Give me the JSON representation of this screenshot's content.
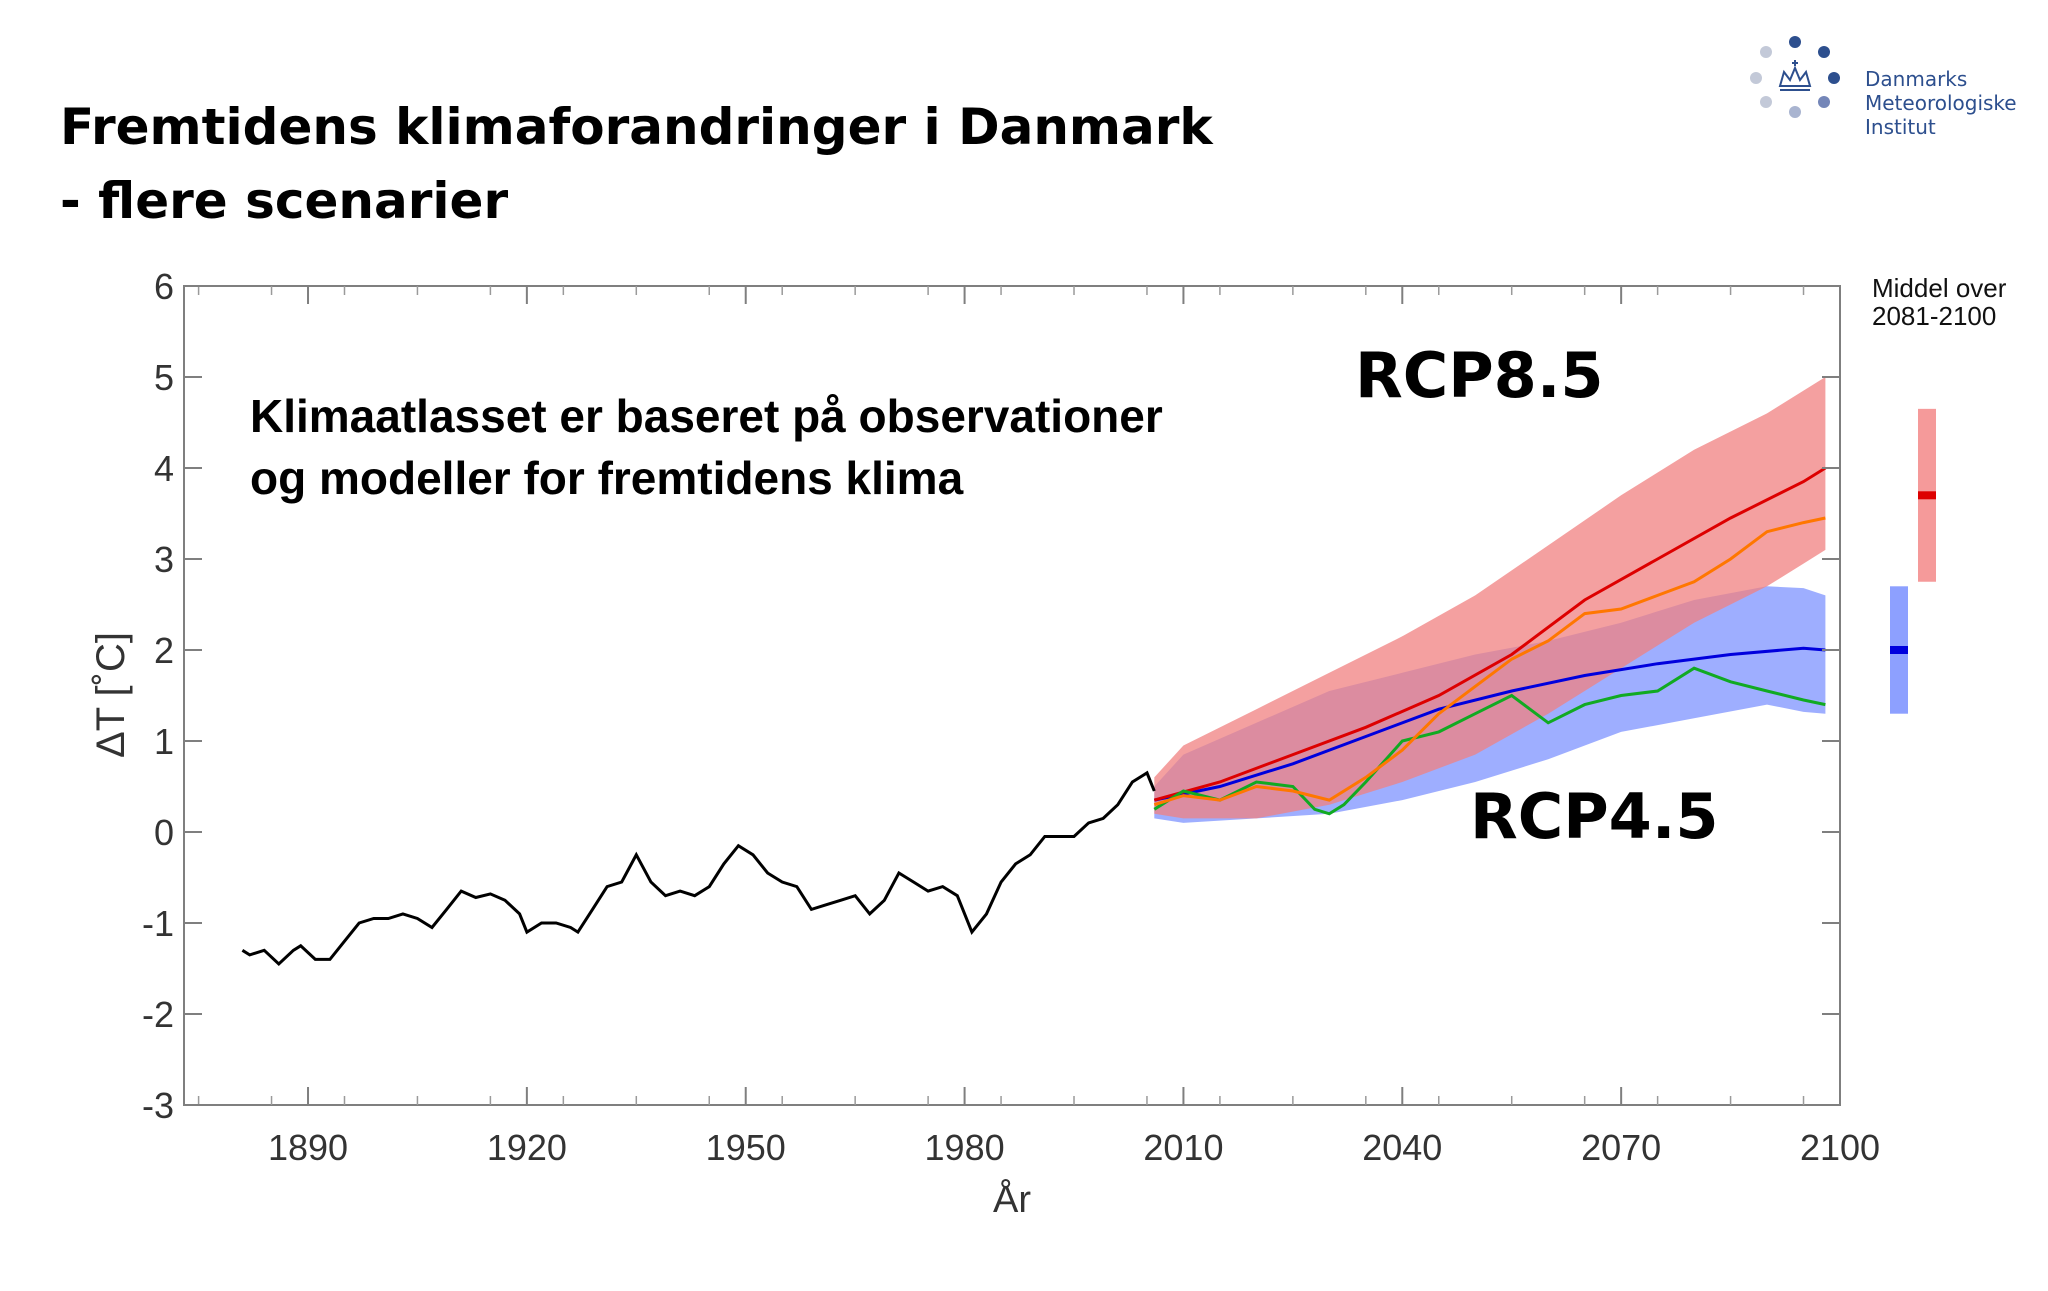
{
  "slide": {
    "title_line1": "Fremtidens klimaforandringer i Danmark",
    "title_line2": "- flere scenarier"
  },
  "logo": {
    "line1": "Danmarks",
    "line2": "Meteorologiske",
    "line3": "Institut",
    "color": "#2d4f8e"
  },
  "chart_data": {
    "type": "line",
    "xlabel": "År",
    "ylabel": "ΔT [˚C]",
    "xlim": [
      1873,
      2100
    ],
    "ylim": [
      -3,
      6
    ],
    "x_ticks": [
      1890,
      1920,
      1950,
      1980,
      2010,
      2040,
      2070,
      2100
    ],
    "y_ticks": [
      -3,
      -2,
      -1,
      0,
      1,
      2,
      3,
      4,
      5,
      6
    ],
    "grid": false,
    "annotations": {
      "note_line1": "Klimaatlasset er baseret på observationer",
      "note_line2": "og modeller for fremtidens klima",
      "rcp85_label": "RCP8.5",
      "rcp45_label": "RCP4.5",
      "side_label_line1": "Middel over",
      "side_label_line2": "2081-2100"
    },
    "observed": {
      "color": "#000000",
      "x": [
        1881,
        1882,
        1884,
        1886,
        1888,
        1889,
        1891,
        1893,
        1895,
        1897,
        1899,
        1901,
        1903,
        1905,
        1907,
        1909,
        1911,
        1913,
        1915,
        1917,
        1919,
        1920,
        1922,
        1924,
        1926,
        1927,
        1929,
        1931,
        1933,
        1935,
        1937,
        1939,
        1941,
        1943,
        1945,
        1947,
        1949,
        1951,
        1953,
        1955,
        1957,
        1959,
        1961,
        1963,
        1965,
        1967,
        1969,
        1971,
        1973,
        1975,
        1977,
        1979,
        1981,
        1983,
        1985,
        1987,
        1989,
        1991,
        1993,
        1995,
        1997,
        1999,
        2001,
        2003,
        2005,
        2006
      ],
      "y": [
        -1.3,
        -1.35,
        -1.3,
        -1.45,
        -1.3,
        -1.25,
        -1.4,
        -1.4,
        -1.2,
        -1.0,
        -0.95,
        -0.95,
        -0.9,
        -0.95,
        -1.05,
        -0.85,
        -0.65,
        -0.72,
        -0.68,
        -0.75,
        -0.9,
        -1.1,
        -1.0,
        -1.0,
        -1.05,
        -1.1,
        -0.85,
        -0.6,
        -0.55,
        -0.25,
        -0.55,
        -0.7,
        -0.65,
        -0.7,
        -0.6,
        -0.35,
        -0.15,
        -0.25,
        -0.45,
        -0.55,
        -0.6,
        -0.85,
        -0.8,
        -0.75,
        -0.7,
        -0.9,
        -0.75,
        -0.45,
        -0.55,
        -0.65,
        -0.6,
        -0.7,
        -1.1,
        -0.9,
        -0.55,
        -0.35,
        -0.25,
        -0.05,
        -0.05,
        -0.05,
        0.1,
        0.15,
        0.3,
        0.55,
        0.65,
        0.45
      ]
    },
    "bands": [
      {
        "scenario": "RCP4.5",
        "color": "#8da0ff",
        "opacity": 0.85,
        "x": [
          2006,
          2010,
          2020,
          2030,
          2040,
          2050,
          2060,
          2070,
          2080,
          2090,
          2095,
          2098
        ],
        "upper": [
          0.5,
          0.85,
          1.2,
          1.55,
          1.75,
          1.95,
          2.1,
          2.3,
          2.55,
          2.7,
          2.68,
          2.6
        ],
        "lower": [
          0.15,
          0.1,
          0.15,
          0.2,
          0.35,
          0.55,
          0.8,
          1.1,
          1.25,
          1.4,
          1.32,
          1.3
        ]
      },
      {
        "scenario": "RCP8.5",
        "color": "#f08080",
        "opacity": 0.75,
        "x": [
          2006,
          2010,
          2020,
          2030,
          2040,
          2050,
          2060,
          2070,
          2080,
          2090,
          2095,
          2098
        ],
        "upper": [
          0.6,
          0.95,
          1.35,
          1.75,
          2.15,
          2.6,
          3.15,
          3.7,
          4.2,
          4.6,
          4.85,
          5.0
        ],
        "lower": [
          0.2,
          0.15,
          0.15,
          0.3,
          0.55,
          0.85,
          1.3,
          1.8,
          2.3,
          2.7,
          2.95,
          3.1
        ]
      }
    ],
    "series": [
      {
        "scenario": "RCP4.5",
        "color": "#0000dd",
        "x": [
          2006,
          2015,
          2025,
          2035,
          2045,
          2055,
          2065,
          2075,
          2085,
          2095,
          2098
        ],
        "y": [
          0.35,
          0.5,
          0.75,
          1.05,
          1.35,
          1.55,
          1.72,
          1.85,
          1.95,
          2.02,
          2.0
        ]
      },
      {
        "scenario": "RCP8.5",
        "color": "#dd0000",
        "x": [
          2006,
          2015,
          2025,
          2035,
          2045,
          2055,
          2065,
          2075,
          2085,
          2095,
          2098
        ],
        "y": [
          0.35,
          0.55,
          0.85,
          1.15,
          1.5,
          1.95,
          2.55,
          3.0,
          3.45,
          3.85,
          4.0
        ]
      },
      {
        "scenario": "RCP4.5 model",
        "color": "#11aa22",
        "x": [
          2006,
          2010,
          2015,
          2020,
          2025,
          2028,
          2030,
          2032,
          2035,
          2040,
          2045,
          2050,
          2055,
          2060,
          2065,
          2070,
          2075,
          2080,
          2085,
          2090,
          2095,
          2098
        ],
        "y": [
          0.25,
          0.45,
          0.35,
          0.55,
          0.5,
          0.25,
          0.2,
          0.3,
          0.55,
          1.0,
          1.1,
          1.3,
          1.5,
          1.2,
          1.4,
          1.5,
          1.55,
          1.8,
          1.65,
          1.55,
          1.45,
          1.4
        ]
      },
      {
        "scenario": "RCP8.5 model",
        "color": "#ff7700",
        "x": [
          2006,
          2010,
          2015,
          2020,
          2025,
          2030,
          2035,
          2040,
          2045,
          2050,
          2055,
          2060,
          2065,
          2070,
          2075,
          2080,
          2085,
          2090,
          2095,
          2098
        ],
        "y": [
          0.3,
          0.4,
          0.35,
          0.5,
          0.45,
          0.35,
          0.6,
          0.9,
          1.3,
          1.6,
          1.9,
          2.1,
          2.4,
          2.45,
          2.6,
          2.75,
          3.0,
          3.3,
          3.4,
          3.45
        ]
      }
    ],
    "side_bars": [
      {
        "scenario": "RCP4.5",
        "band_color": "#8da0ff",
        "mean_color": "#0000dd",
        "low": 1.3,
        "high": 2.7,
        "mean": 2.0
      },
      {
        "scenario": "RCP8.5",
        "band_color": "#f59a9a",
        "mean_color": "#dd0000",
        "low": 2.75,
        "high": 4.65,
        "mean": 3.7
      }
    ]
  }
}
